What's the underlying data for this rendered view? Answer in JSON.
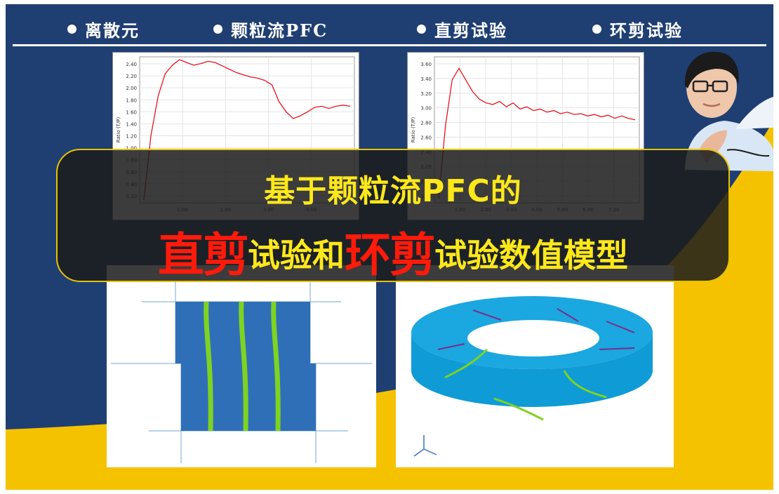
{
  "nav": {
    "items": [
      {
        "label": "离散元"
      },
      {
        "label": "颗粒流PFC"
      },
      {
        "label": "直剪试验"
      },
      {
        "label": "环剪试验"
      }
    ]
  },
  "banner": {
    "line1": "基于颗粒流PFC的",
    "line2_parts": [
      {
        "text": "直剪",
        "highlight": true
      },
      {
        "text": "试验和",
        "highlight": false
      },
      {
        "text": "环剪",
        "highlight": true
      },
      {
        "text": "试验数值模型",
        "highlight": false
      }
    ]
  },
  "colors": {
    "navy": "#1f3f73",
    "yellow": "#f5c200",
    "banner_text": "#ffe81a",
    "highlight_red": "#ff1a0a",
    "curve_red": "#e8141e"
  },
  "charts": {
    "left": {
      "ylabel": "Ratio (T/P) ",
      "ytick_labels": [
        "2.40",
        "2.20",
        "2.00",
        "1.80",
        "1.60",
        "1.40",
        "1.20",
        "1.00",
        "0.80",
        "0.60",
        "0.40",
        "0.20"
      ],
      "xtick_labels": [
        "1.00",
        "2.00",
        "3.00",
        "4.00"
      ]
    },
    "right": {
      "ylabel": "Ratio (T/P) ",
      "ytick_labels": [
        "3.60",
        "3.40",
        "3.20",
        "3.00",
        "2.80",
        "2.60",
        "2.40",
        "2.20",
        "2.00",
        "1.80"
      ],
      "xtick_labels": [
        "1.00",
        "2.00",
        "3.00",
        "4.00",
        "5.00",
        "6.00",
        "7.00"
      ]
    }
  },
  "chart_data": [
    {
      "type": "line",
      "ylim": [
        0,
        2.6
      ],
      "series": [
        {
          "values": [
            0.05,
            1.2,
            1.9,
            2.3,
            2.45,
            2.55,
            2.5,
            2.45,
            2.48,
            2.52,
            2.5,
            2.44,
            2.38,
            2.32,
            2.28,
            2.24,
            2.22,
            2.18,
            2.1,
            1.8,
            1.62,
            1.5,
            1.55,
            1.62,
            1.7,
            1.72,
            1.68,
            1.72,
            1.74,
            1.72
          ]
        }
      ]
    },
    {
      "type": "line",
      "ylim": [
        1.8,
        3.7
      ],
      "series": [
        {
          "values": [
            1.85,
            2.8,
            3.4,
            3.55,
            3.4,
            3.25,
            3.15,
            3.1,
            3.08,
            3.12,
            3.05,
            3.1,
            3.02,
            3.05,
            3.0,
            3.02,
            2.98,
            3.0,
            2.96,
            2.98,
            2.95,
            2.96,
            2.93,
            2.95,
            2.92,
            2.94,
            2.9,
            2.93,
            2.9,
            2.88
          ]
        }
      ]
    }
  ]
}
